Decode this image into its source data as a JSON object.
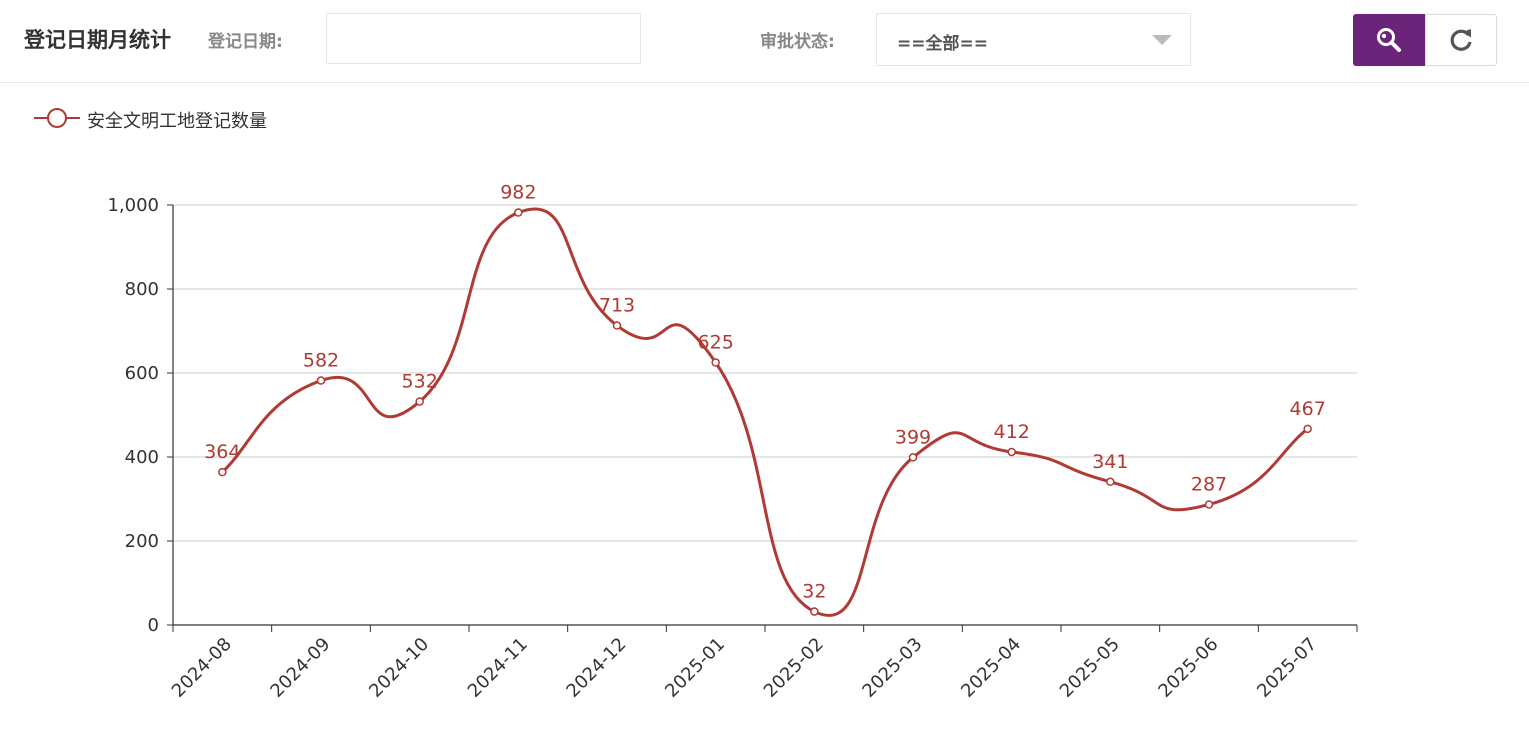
{
  "toolbar": {
    "title": "登记日期月统计",
    "date_label": "登记日期:",
    "date_value": "",
    "status_label": "审批状态:",
    "status_value": "==全部=="
  },
  "icons": {
    "search": "search-icon",
    "refresh": "refresh-icon"
  },
  "colors": {
    "accent": "#6a2479",
    "series": "#b03a34"
  },
  "chart_data": {
    "type": "line",
    "smooth": true,
    "categories": [
      "2024-08",
      "2024-09",
      "2024-10",
      "2024-11",
      "2024-12",
      "2025-01",
      "2025-02",
      "2025-03",
      "2025-04",
      "2025-05",
      "2025-06",
      "2025-07"
    ],
    "series": [
      {
        "name": "安全文明工地登记数量",
        "values": [
          364,
          582,
          532,
          982,
          713,
          625,
          32,
          399,
          412,
          341,
          287,
          467
        ]
      }
    ],
    "ylim": [
      0,
      1000
    ],
    "yticks": [
      "0",
      "200",
      "400",
      "600",
      "800",
      "1,000"
    ],
    "grid": true,
    "legend": "top-left",
    "data_labels": true
  }
}
